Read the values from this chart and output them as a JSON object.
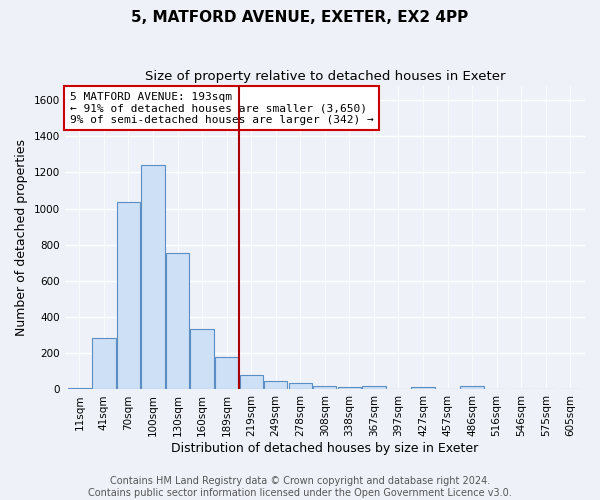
{
  "title": "5, MATFORD AVENUE, EXETER, EX2 4PP",
  "subtitle": "Size of property relative to detached houses in Exeter",
  "xlabel": "Distribution of detached houses by size in Exeter",
  "ylabel": "Number of detached properties",
  "bin_labels": [
    "11sqm",
    "41sqm",
    "70sqm",
    "100sqm",
    "130sqm",
    "160sqm",
    "189sqm",
    "219sqm",
    "249sqm",
    "278sqm",
    "308sqm",
    "338sqm",
    "367sqm",
    "397sqm",
    "427sqm",
    "457sqm",
    "486sqm",
    "516sqm",
    "546sqm",
    "575sqm",
    "605sqm"
  ],
  "bar_heights": [
    10,
    285,
    1035,
    1240,
    755,
    335,
    180,
    80,
    45,
    38,
    20,
    15,
    18,
    0,
    15,
    0,
    20,
    0,
    0,
    0,
    0
  ],
  "bar_color": "#cde0f5",
  "bar_edge_color": "#5b8ec4",
  "vline_color": "#aa0000",
  "annotation_line1": "5 MATFORD AVENUE: 193sqm",
  "annotation_line2": "← 91% of detached houses are smaller (3,650)",
  "annotation_line3": "9% of semi-detached houses are larger (342) →",
  "annotation_box_color": "#cc0000",
  "ylim": [
    0,
    1680
  ],
  "yticks": [
    0,
    200,
    400,
    600,
    800,
    1000,
    1200,
    1400,
    1600
  ],
  "footer_text": "Contains HM Land Registry data © Crown copyright and database right 2024.\nContains public sector information licensed under the Open Government Licence v3.0.",
  "bg_color": "#eef2f8",
  "plot_bg_color": "#eef2f8",
  "grid_color": "#ffffff",
  "title_fontsize": 11,
  "subtitle_fontsize": 9.5,
  "axis_label_fontsize": 9,
  "tick_fontsize": 7.5,
  "footer_fontsize": 7,
  "vline_x_index": 6.5
}
